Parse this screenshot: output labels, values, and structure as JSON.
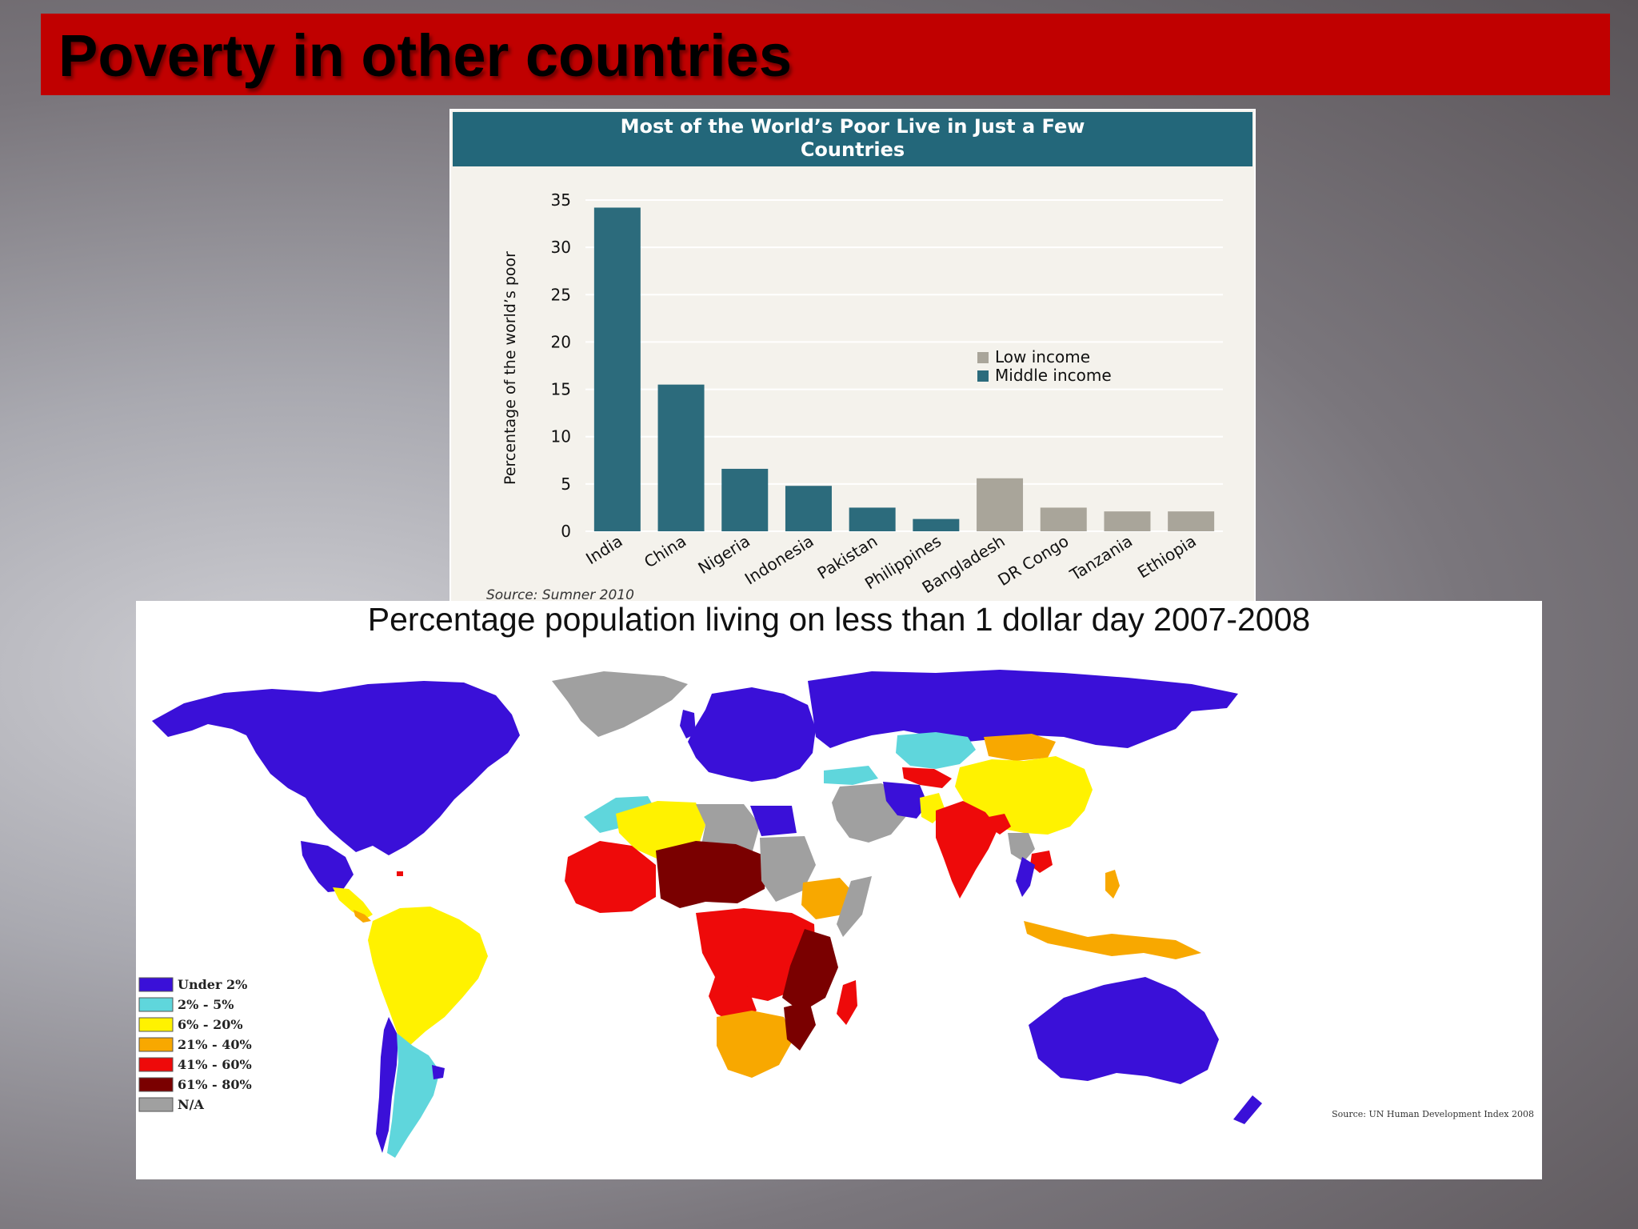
{
  "slide": {
    "title": "Poverty in other countries"
  },
  "chart_data": [
    {
      "type": "bar",
      "title": "Most of the World’s Poor Live in Just a Few Countries",
      "title_lines": [
        "Most of the World’s Poor Live in Just a Few",
        "Countries"
      ],
      "ylabel": "Percentage of the world’s poor",
      "xlabel": "",
      "ylim": [
        0,
        35
      ],
      "yticks": [
        0,
        5,
        10,
        15,
        20,
        25,
        30,
        35
      ],
      "grid": true,
      "legend_position": "center-right",
      "categories": [
        "India",
        "China",
        "Nigeria",
        "Indonesia",
        "Pakistan",
        "Philippines",
        "Bangladesh",
        "DR Congo",
        "Tanzania",
        "Ethiopia"
      ],
      "series": [
        {
          "name": "Low income",
          "color": "#a9a59a",
          "values": [
            null,
            null,
            null,
            null,
            null,
            null,
            5.6,
            2.5,
            2.1,
            2.1
          ]
        },
        {
          "name": "Middle income",
          "color": "#2c6b7c",
          "values": [
            34.2,
            15.5,
            6.6,
            4.8,
            2.5,
            1.3,
            null,
            null,
            null,
            null
          ]
        }
      ],
      "source": "Source: Sumner 2010"
    },
    {
      "type": "heatmap",
      "title": "Percentage population living on less than 1 dollar day 2007-2008",
      "legend_position": "bottom-left",
      "legend": [
        {
          "label": "Under 2%",
          "color": "#3a10d8"
        },
        {
          "label": "2% - 5%",
          "color": "#5fd6dc"
        },
        {
          "label": "6% - 20%",
          "color": "#fff200"
        },
        {
          "label": "21% - 40%",
          "color": "#f8a800"
        },
        {
          "label": "41% - 60%",
          "color": "#ee0a0a"
        },
        {
          "label": "61% - 80%",
          "color": "#7a0000"
        },
        {
          "label": "N/A",
          "color": "#a0a0a0"
        }
      ],
      "source": "Source: UN Human Development Index 2008"
    }
  ]
}
